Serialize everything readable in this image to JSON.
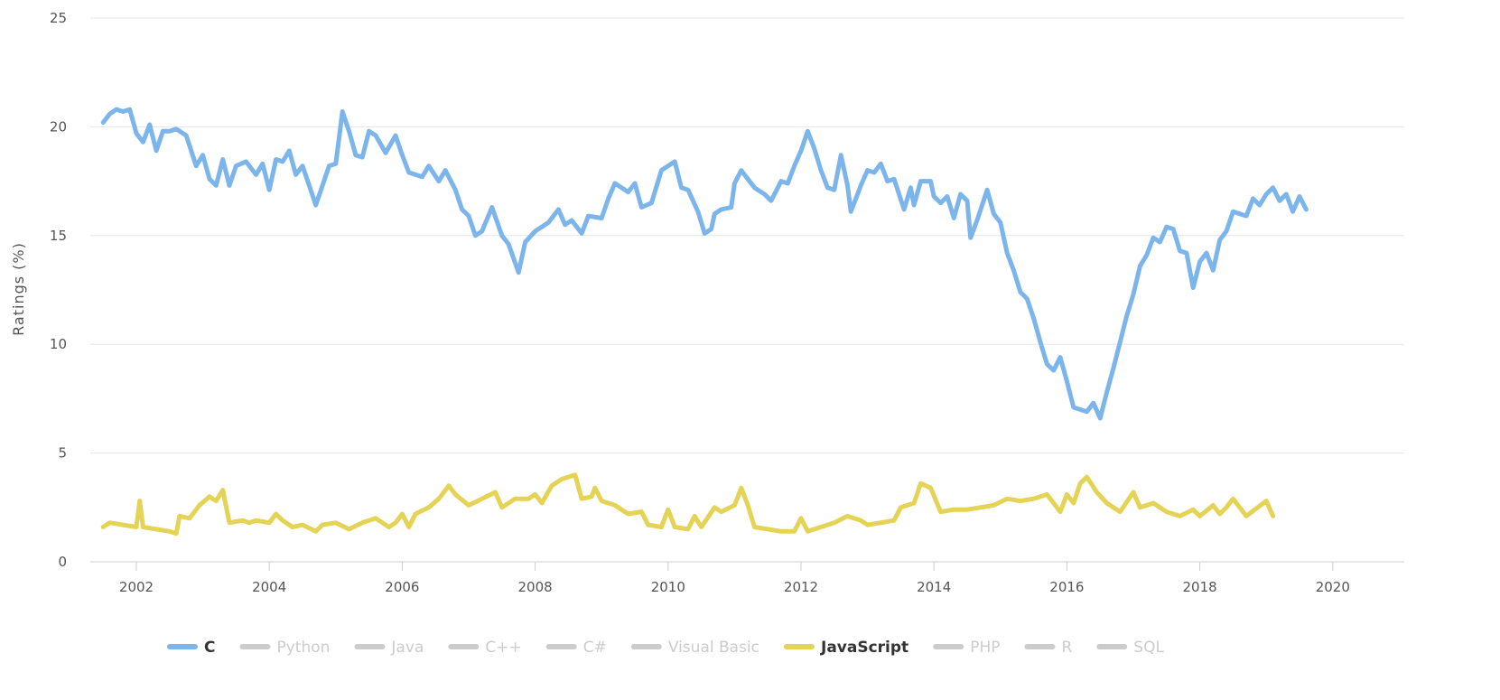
{
  "chart_data": {
    "type": "line",
    "title": "",
    "xlabel": "",
    "ylabel": "Ratings (%)",
    "xlim": [
      2001.5,
      2020.9
    ],
    "ylim": [
      0,
      25
    ],
    "y_ticks": [
      "0",
      "5",
      "10",
      "15",
      "20",
      "25"
    ],
    "x_ticks": [
      "2002",
      "2004",
      "2006",
      "2008",
      "2010",
      "2012",
      "2014",
      "2016",
      "2018",
      "2020"
    ],
    "grid": "horizontal",
    "legend_position": "bottom",
    "series": [
      {
        "name": "C",
        "color": "#7cb5ec",
        "visible": true,
        "points": [
          [
            2001.5,
            20.2
          ],
          [
            2001.6,
            20.6
          ],
          [
            2001.7,
            20.8
          ],
          [
            2001.8,
            20.7
          ],
          [
            2001.9,
            20.8
          ],
          [
            2002.0,
            19.7
          ],
          [
            2002.1,
            19.3
          ],
          [
            2002.2,
            20.1
          ],
          [
            2002.3,
            18.9
          ],
          [
            2002.4,
            19.8
          ],
          [
            2002.5,
            19.8
          ],
          [
            2002.6,
            19.9
          ],
          [
            2002.75,
            19.6
          ],
          [
            2002.9,
            18.2
          ],
          [
            2003.0,
            18.7
          ],
          [
            2003.1,
            17.6
          ],
          [
            2003.2,
            17.3
          ],
          [
            2003.3,
            18.5
          ],
          [
            2003.4,
            17.3
          ],
          [
            2003.5,
            18.2
          ],
          [
            2003.65,
            18.4
          ],
          [
            2003.8,
            17.8
          ],
          [
            2003.9,
            18.3
          ],
          [
            2004.0,
            17.1
          ],
          [
            2004.1,
            18.5
          ],
          [
            2004.2,
            18.4
          ],
          [
            2004.3,
            18.9
          ],
          [
            2004.4,
            17.8
          ],
          [
            2004.5,
            18.2
          ],
          [
            2004.6,
            17.3
          ],
          [
            2004.7,
            16.4
          ],
          [
            2004.8,
            17.3
          ],
          [
            2004.9,
            18.2
          ],
          [
            2005.0,
            18.3
          ],
          [
            2005.1,
            20.7
          ],
          [
            2005.2,
            19.8
          ],
          [
            2005.3,
            18.7
          ],
          [
            2005.4,
            18.6
          ],
          [
            2005.5,
            19.8
          ],
          [
            2005.6,
            19.6
          ],
          [
            2005.75,
            18.8
          ],
          [
            2005.9,
            19.6
          ],
          [
            2006.0,
            18.7
          ],
          [
            2006.1,
            17.9
          ],
          [
            2006.3,
            17.7
          ],
          [
            2006.4,
            18.2
          ],
          [
            2006.55,
            17.5
          ],
          [
            2006.65,
            18.0
          ],
          [
            2006.8,
            17.1
          ],
          [
            2006.9,
            16.2
          ],
          [
            2007.0,
            15.9
          ],
          [
            2007.1,
            15.0
          ],
          [
            2007.2,
            15.2
          ],
          [
            2007.35,
            16.3
          ],
          [
            2007.5,
            15.0
          ],
          [
            2007.6,
            14.6
          ],
          [
            2007.75,
            13.3
          ],
          [
            2007.85,
            14.7
          ],
          [
            2008.0,
            15.2
          ],
          [
            2008.2,
            15.6
          ],
          [
            2008.35,
            16.2
          ],
          [
            2008.45,
            15.5
          ],
          [
            2008.55,
            15.7
          ],
          [
            2008.7,
            15.1
          ],
          [
            2008.8,
            15.9
          ],
          [
            2009.0,
            15.8
          ],
          [
            2009.1,
            16.7
          ],
          [
            2009.2,
            17.4
          ],
          [
            2009.3,
            17.2
          ],
          [
            2009.4,
            17.0
          ],
          [
            2009.5,
            17.4
          ],
          [
            2009.6,
            16.3
          ],
          [
            2009.75,
            16.5
          ],
          [
            2009.9,
            18.0
          ],
          [
            2010.0,
            18.2
          ],
          [
            2010.1,
            18.4
          ],
          [
            2010.2,
            17.2
          ],
          [
            2010.3,
            17.1
          ],
          [
            2010.45,
            16.1
          ],
          [
            2010.55,
            15.1
          ],
          [
            2010.65,
            15.3
          ],
          [
            2010.7,
            16.0
          ],
          [
            2010.8,
            16.2
          ],
          [
            2010.95,
            16.3
          ],
          [
            2011.0,
            17.4
          ],
          [
            2011.1,
            18.0
          ],
          [
            2011.2,
            17.6
          ],
          [
            2011.3,
            17.2
          ],
          [
            2011.45,
            16.9
          ],
          [
            2011.55,
            16.6
          ],
          [
            2011.7,
            17.5
          ],
          [
            2011.8,
            17.4
          ],
          [
            2011.9,
            18.2
          ],
          [
            2012.0,
            18.9
          ],
          [
            2012.1,
            19.8
          ],
          [
            2012.2,
            19.0
          ],
          [
            2012.3,
            18.0
          ],
          [
            2012.4,
            17.2
          ],
          [
            2012.5,
            17.1
          ],
          [
            2012.6,
            18.7
          ],
          [
            2012.7,
            17.3
          ],
          [
            2012.75,
            16.1
          ],
          [
            2012.85,
            16.9
          ],
          [
            2012.9,
            17.3
          ],
          [
            2013.0,
            18.0
          ],
          [
            2013.1,
            17.9
          ],
          [
            2013.2,
            18.3
          ],
          [
            2013.3,
            17.5
          ],
          [
            2013.4,
            17.6
          ],
          [
            2013.55,
            16.2
          ],
          [
            2013.65,
            17.2
          ],
          [
            2013.7,
            16.4
          ],
          [
            2013.8,
            17.5
          ],
          [
            2013.95,
            17.5
          ],
          [
            2014.0,
            16.8
          ],
          [
            2014.1,
            16.5
          ],
          [
            2014.2,
            16.8
          ],
          [
            2014.3,
            15.8
          ],
          [
            2014.4,
            16.9
          ],
          [
            2014.5,
            16.6
          ],
          [
            2014.55,
            14.9
          ],
          [
            2014.65,
            15.7
          ],
          [
            2014.8,
            17.1
          ],
          [
            2014.9,
            16.0
          ],
          [
            2015.0,
            15.6
          ],
          [
            2015.1,
            14.2
          ],
          [
            2015.2,
            13.4
          ],
          [
            2015.3,
            12.4
          ],
          [
            2015.4,
            12.1
          ],
          [
            2015.5,
            11.2
          ],
          [
            2015.6,
            10.1
          ],
          [
            2015.7,
            9.1
          ],
          [
            2015.8,
            8.8
          ],
          [
            2015.9,
            9.4
          ],
          [
            2016.0,
            8.3
          ],
          [
            2016.1,
            7.1
          ],
          [
            2016.2,
            7.0
          ],
          [
            2016.3,
            6.9
          ],
          [
            2016.4,
            7.3
          ],
          [
            2016.5,
            6.6
          ],
          [
            2016.6,
            7.8
          ],
          [
            2016.7,
            8.9
          ],
          [
            2016.8,
            10.1
          ],
          [
            2016.9,
            11.3
          ],
          [
            2017.0,
            12.3
          ],
          [
            2017.1,
            13.6
          ],
          [
            2017.2,
            14.1
          ],
          [
            2017.3,
            14.9
          ],
          [
            2017.4,
            14.7
          ],
          [
            2017.5,
            15.4
          ],
          [
            2017.6,
            15.3
          ],
          [
            2017.7,
            14.3
          ],
          [
            2017.8,
            14.2
          ],
          [
            2017.9,
            12.6
          ],
          [
            2018.0,
            13.8
          ],
          [
            2018.1,
            14.2
          ],
          [
            2018.2,
            13.4
          ],
          [
            2018.3,
            14.8
          ],
          [
            2018.4,
            15.2
          ],
          [
            2018.5,
            16.1
          ],
          [
            2018.6,
            16.0
          ],
          [
            2018.7,
            15.9
          ],
          [
            2018.8,
            16.7
          ],
          [
            2018.9,
            16.4
          ],
          [
            2019.0,
            16.9
          ],
          [
            2019.1,
            17.2
          ],
          [
            2019.2,
            16.6
          ],
          [
            2019.3,
            16.9
          ],
          [
            2019.4,
            16.1
          ],
          [
            2019.5,
            16.8
          ],
          [
            2019.6,
            16.2
          ]
        ]
      },
      {
        "name": "Python",
        "color": "#cccccc",
        "visible": false,
        "points": []
      },
      {
        "name": "Java",
        "color": "#cccccc",
        "visible": false,
        "points": []
      },
      {
        "name": "C++",
        "color": "#cccccc",
        "visible": false,
        "points": []
      },
      {
        "name": "C#",
        "color": "#cccccc",
        "visible": false,
        "points": []
      },
      {
        "name": "Visual Basic",
        "color": "#cccccc",
        "visible": false,
        "points": []
      },
      {
        "name": "JavaScript",
        "color": "#e4d354",
        "visible": true,
        "points": [
          [
            2001.5,
            1.6
          ],
          [
            2001.6,
            1.8
          ],
          [
            2001.8,
            1.7
          ],
          [
            2002.0,
            1.6
          ],
          [
            2002.05,
            2.8
          ],
          [
            2002.1,
            1.6
          ],
          [
            2002.3,
            1.5
          ],
          [
            2002.5,
            1.4
          ],
          [
            2002.6,
            1.3
          ],
          [
            2002.65,
            2.1
          ],
          [
            2002.8,
            2.0
          ],
          [
            2002.95,
            2.6
          ],
          [
            2003.1,
            3.0
          ],
          [
            2003.2,
            2.8
          ],
          [
            2003.3,
            3.3
          ],
          [
            2003.4,
            1.8
          ],
          [
            2003.6,
            1.9
          ],
          [
            2003.7,
            1.8
          ],
          [
            2003.8,
            1.9
          ],
          [
            2004.0,
            1.8
          ],
          [
            2004.1,
            2.2
          ],
          [
            2004.2,
            1.9
          ],
          [
            2004.35,
            1.6
          ],
          [
            2004.5,
            1.7
          ],
          [
            2004.7,
            1.4
          ],
          [
            2004.8,
            1.7
          ],
          [
            2005.0,
            1.8
          ],
          [
            2005.2,
            1.5
          ],
          [
            2005.4,
            1.8
          ],
          [
            2005.6,
            2.0
          ],
          [
            2005.8,
            1.6
          ],
          [
            2005.9,
            1.8
          ],
          [
            2006.0,
            2.2
          ],
          [
            2006.1,
            1.6
          ],
          [
            2006.2,
            2.2
          ],
          [
            2006.4,
            2.5
          ],
          [
            2006.55,
            2.9
          ],
          [
            2006.7,
            3.5
          ],
          [
            2006.8,
            3.1
          ],
          [
            2007.0,
            2.6
          ],
          [
            2007.2,
            2.9
          ],
          [
            2007.4,
            3.2
          ],
          [
            2007.5,
            2.5
          ],
          [
            2007.7,
            2.9
          ],
          [
            2007.9,
            2.9
          ],
          [
            2008.0,
            3.1
          ],
          [
            2008.1,
            2.7
          ],
          [
            2008.25,
            3.5
          ],
          [
            2008.4,
            3.8
          ],
          [
            2008.5,
            3.9
          ],
          [
            2008.6,
            4.0
          ],
          [
            2008.7,
            2.9
          ],
          [
            2008.85,
            3.0
          ],
          [
            2008.9,
            3.4
          ],
          [
            2009.0,
            2.8
          ],
          [
            2009.2,
            2.6
          ],
          [
            2009.4,
            2.2
          ],
          [
            2009.6,
            2.3
          ],
          [
            2009.7,
            1.7
          ],
          [
            2009.9,
            1.6
          ],
          [
            2010.0,
            2.4
          ],
          [
            2010.1,
            1.6
          ],
          [
            2010.3,
            1.5
          ],
          [
            2010.4,
            2.1
          ],
          [
            2010.5,
            1.6
          ],
          [
            2010.7,
            2.5
          ],
          [
            2010.8,
            2.3
          ],
          [
            2011.0,
            2.6
          ],
          [
            2011.1,
            3.4
          ],
          [
            2011.2,
            2.6
          ],
          [
            2011.3,
            1.6
          ],
          [
            2011.5,
            1.5
          ],
          [
            2011.7,
            1.4
          ],
          [
            2011.9,
            1.4
          ],
          [
            2012.0,
            2.0
          ],
          [
            2012.1,
            1.4
          ],
          [
            2012.3,
            1.6
          ],
          [
            2012.5,
            1.8
          ],
          [
            2012.7,
            2.1
          ],
          [
            2012.9,
            1.9
          ],
          [
            2013.0,
            1.7
          ],
          [
            2013.2,
            1.8
          ],
          [
            2013.4,
            1.9
          ],
          [
            2013.5,
            2.5
          ],
          [
            2013.7,
            2.7
          ],
          [
            2013.8,
            3.6
          ],
          [
            2013.95,
            3.4
          ],
          [
            2014.1,
            2.3
          ],
          [
            2014.3,
            2.4
          ],
          [
            2014.5,
            2.4
          ],
          [
            2014.7,
            2.5
          ],
          [
            2014.9,
            2.6
          ],
          [
            2015.1,
            2.9
          ],
          [
            2015.3,
            2.8
          ],
          [
            2015.5,
            2.9
          ],
          [
            2015.7,
            3.1
          ],
          [
            2015.8,
            2.7
          ],
          [
            2015.9,
            2.3
          ],
          [
            2016.0,
            3.1
          ],
          [
            2016.1,
            2.7
          ],
          [
            2016.2,
            3.6
          ],
          [
            2016.3,
            3.9
          ],
          [
            2016.45,
            3.2
          ],
          [
            2016.6,
            2.7
          ],
          [
            2016.8,
            2.3
          ],
          [
            2017.0,
            3.2
          ],
          [
            2017.1,
            2.5
          ],
          [
            2017.3,
            2.7
          ],
          [
            2017.5,
            2.3
          ],
          [
            2017.7,
            2.1
          ],
          [
            2017.9,
            2.4
          ],
          [
            2018.0,
            2.1
          ],
          [
            2018.2,
            2.6
          ],
          [
            2018.3,
            2.2
          ],
          [
            2018.4,
            2.5
          ],
          [
            2018.5,
            2.9
          ],
          [
            2018.7,
            2.1
          ],
          [
            2019.0,
            2.8
          ],
          [
            2019.1,
            2.1
          ]
        ]
      },
      {
        "name": "PHP",
        "color": "#cccccc",
        "visible": false,
        "points": []
      },
      {
        "name": "R",
        "color": "#cccccc",
        "visible": false,
        "points": []
      },
      {
        "name": "SQL",
        "color": "#cccccc",
        "visible": false,
        "points": []
      }
    ]
  },
  "colors": {
    "grid": "#e6e6e6",
    "axis": "#cccccc",
    "legend_active_text": "#333333",
    "legend_inactive_text": "#cccccc"
  }
}
